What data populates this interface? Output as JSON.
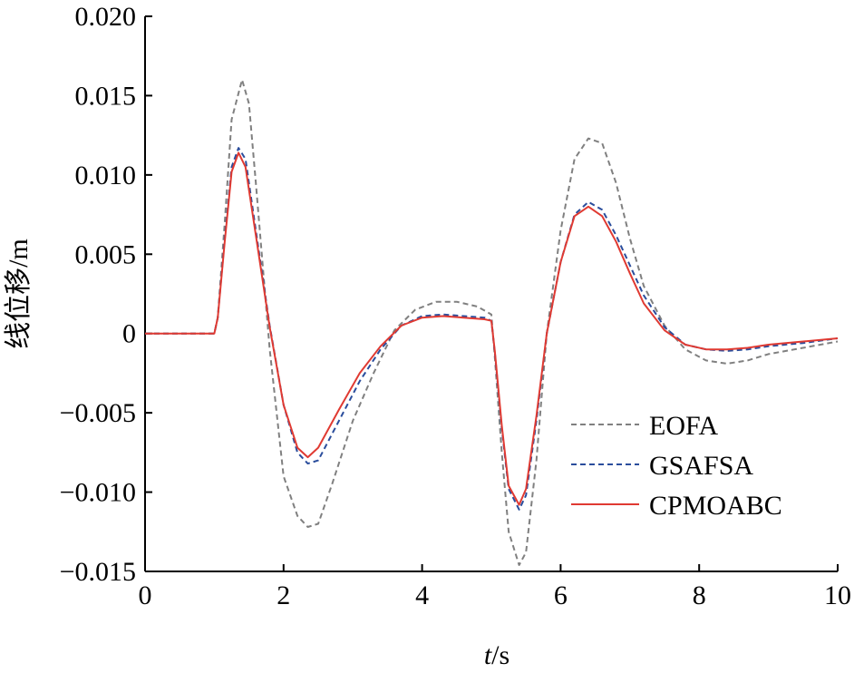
{
  "chart_data": {
    "type": "line",
    "title": "",
    "xlabel_italic": "t",
    "xlabel_unit": "/s",
    "ylabel": "线位移/m",
    "xlim": [
      0,
      10
    ],
    "ylim": [
      -0.015,
      0.02
    ],
    "x_ticks": [
      "0",
      "2",
      "4",
      "6",
      "8",
      "10"
    ],
    "y_ticks": [
      "0.020",
      "0.015",
      "0.010",
      "0.005",
      "0",
      "−0.005",
      "−0.010",
      "−0.015"
    ],
    "y_tick_values": [
      0.02,
      0.015,
      0.01,
      0.005,
      0,
      -0.005,
      -0.01,
      -0.015
    ],
    "x_tick_values": [
      0,
      2,
      4,
      6,
      8,
      10
    ],
    "grid": false,
    "legend_position": "bottom-right",
    "series": [
      {
        "name": "EOFA",
        "color": "#808080",
        "dash": "dashed",
        "x": [
          0,
          1.0,
          1.05,
          1.15,
          1.25,
          1.4,
          1.5,
          1.6,
          1.8,
          2.0,
          2.2,
          2.35,
          2.5,
          2.7,
          3.0,
          3.3,
          3.6,
          3.9,
          4.2,
          4.5,
          4.8,
          5.0,
          5.05,
          5.15,
          5.25,
          5.4,
          5.5,
          5.65,
          5.8,
          6.0,
          6.2,
          6.4,
          6.6,
          6.8,
          7.0,
          7.2,
          7.5,
          7.8,
          8.1,
          8.4,
          8.7,
          9.0,
          9.5,
          10.0
        ],
        "y": [
          0,
          0,
          0.001,
          0.007,
          0.0135,
          0.016,
          0.0145,
          0.0095,
          -0.001,
          -0.009,
          -0.0115,
          -0.0122,
          -0.012,
          -0.0095,
          -0.0055,
          -0.0025,
          0.0002,
          0.0015,
          0.002,
          0.002,
          0.0017,
          0.0012,
          -0.0015,
          -0.0075,
          -0.0125,
          -0.0146,
          -0.0138,
          -0.008,
          0.0,
          0.0065,
          0.011,
          0.0123,
          0.012,
          0.0095,
          0.006,
          0.003,
          0.0005,
          -0.001,
          -0.0017,
          -0.0019,
          -0.0017,
          -0.0013,
          -0.0009,
          -0.0005
        ]
      },
      {
        "name": "GSAFSA",
        "color": "#2a4d9c",
        "dash": "dashed",
        "x": [
          0,
          1.0,
          1.05,
          1.15,
          1.25,
          1.35,
          1.45,
          1.6,
          1.8,
          2.0,
          2.2,
          2.35,
          2.5,
          2.8,
          3.1,
          3.4,
          3.7,
          4.0,
          4.3,
          4.6,
          4.9,
          5.0,
          5.05,
          5.15,
          5.25,
          5.4,
          5.5,
          5.65,
          5.8,
          6.0,
          6.2,
          6.4,
          6.6,
          6.8,
          7.0,
          7.2,
          7.5,
          7.8,
          8.1,
          8.4,
          8.7,
          9.0,
          9.5,
          10.0
        ],
        "y": [
          0,
          0,
          0.001,
          0.006,
          0.0105,
          0.0117,
          0.011,
          0.0065,
          0.0005,
          -0.0045,
          -0.0075,
          -0.0082,
          -0.008,
          -0.0055,
          -0.003,
          -0.001,
          0.0005,
          0.0011,
          0.0012,
          0.0011,
          0.001,
          0.0008,
          -0.0012,
          -0.006,
          -0.0098,
          -0.0111,
          -0.0102,
          -0.0055,
          0.0,
          0.0045,
          0.0075,
          0.0083,
          0.0078,
          0.0062,
          0.0043,
          0.0024,
          0.0004,
          -0.0007,
          -0.001,
          -0.0011,
          -0.001,
          -0.0008,
          -0.0006,
          -0.0003
        ]
      },
      {
        "name": "CPMOABC",
        "color": "#e03a32",
        "dash": "solid",
        "x": [
          0,
          1.0,
          1.05,
          1.15,
          1.25,
          1.35,
          1.45,
          1.6,
          1.8,
          2.0,
          2.2,
          2.35,
          2.5,
          2.8,
          3.1,
          3.4,
          3.7,
          4.0,
          4.3,
          4.6,
          4.9,
          5.0,
          5.05,
          5.15,
          5.25,
          5.4,
          5.5,
          5.65,
          5.8,
          6.0,
          6.2,
          6.4,
          6.6,
          6.8,
          7.0,
          7.2,
          7.5,
          7.8,
          8.1,
          8.4,
          8.7,
          9.0,
          9.5,
          10.0
        ],
        "y": [
          0,
          0,
          0.001,
          0.0058,
          0.0102,
          0.0114,
          0.0105,
          0.0062,
          0.0004,
          -0.0045,
          -0.0072,
          -0.0078,
          -0.0072,
          -0.0048,
          -0.0025,
          -0.0008,
          0.0005,
          0.001,
          0.0011,
          0.001,
          0.0009,
          0.0008,
          -0.0011,
          -0.0058,
          -0.0096,
          -0.0108,
          -0.0098,
          -0.0052,
          0.0,
          0.0045,
          0.0074,
          0.008,
          0.0074,
          0.0058,
          0.0038,
          0.0019,
          0.0002,
          -0.0007,
          -0.001,
          -0.001,
          -0.0009,
          -0.0007,
          -0.0005,
          -0.0003
        ]
      }
    ]
  }
}
